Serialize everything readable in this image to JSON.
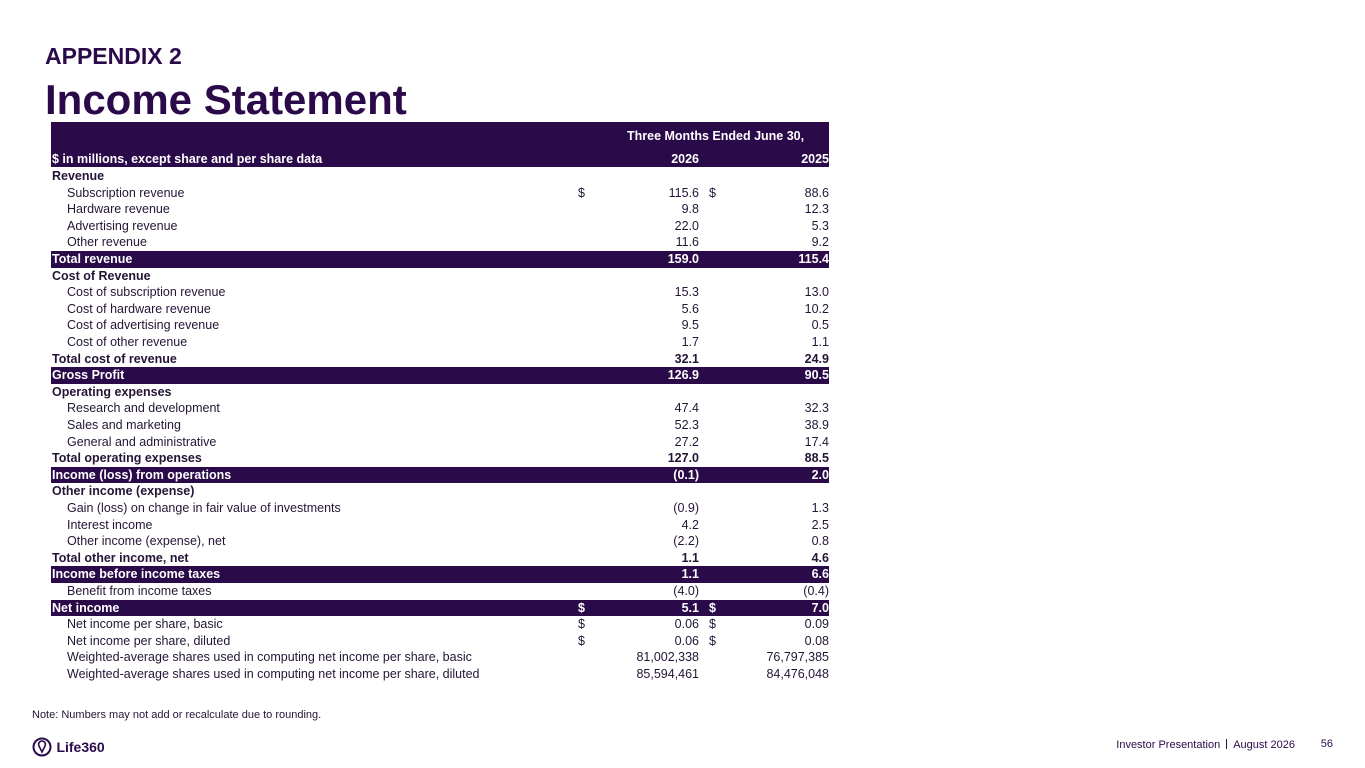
{
  "header": {
    "kicker": "APPENDIX 2",
    "title": "Income Statement"
  },
  "table": {
    "period": "Three Months Ended June 30,",
    "units": "$ in millions, except share and per share data",
    "columns": [
      "2026",
      "2025"
    ],
    "rows": [
      {
        "label": "Revenue",
        "style": "section"
      },
      {
        "label": "Subscription revenue",
        "style": "item",
        "sign1": "$",
        "v1": "115.6",
        "sign2": "$",
        "v2": "88.6"
      },
      {
        "label": "Hardware revenue",
        "style": "item",
        "v1": "9.8",
        "v2": "12.3"
      },
      {
        "label": "Advertising revenue",
        "style": "item",
        "v1": "22.0",
        "v2": "5.3"
      },
      {
        "label": "Other revenue",
        "style": "item",
        "v1": "11.6",
        "v2": "9.2"
      },
      {
        "label": "Total revenue",
        "style": "highlight",
        "v1": "159.0",
        "v2": "115.4"
      },
      {
        "label": "Cost of Revenue",
        "style": "section"
      },
      {
        "label": "Cost of subscription revenue",
        "style": "item",
        "v1": "15.3",
        "v2": "13.0"
      },
      {
        "label": "Cost of hardware revenue",
        "style": "item",
        "v1": "5.6",
        "v2": "10.2"
      },
      {
        "label": "Cost of advertising revenue",
        "style": "item",
        "v1": "9.5",
        "v2": "0.5"
      },
      {
        "label": "Cost of other revenue",
        "style": "item",
        "v1": "1.7",
        "v2": "1.1"
      },
      {
        "label": "Total cost of revenue",
        "style": "total",
        "v1": "32.1",
        "v2": "24.9"
      },
      {
        "label": "Gross Profit",
        "style": "highlight",
        "v1": "126.9",
        "v2": "90.5"
      },
      {
        "label": "Operating expenses",
        "style": "section"
      },
      {
        "label": "Research and development",
        "style": "item",
        "v1": "47.4",
        "v2": "32.3"
      },
      {
        "label": "Sales and marketing",
        "style": "item",
        "v1": "52.3",
        "v2": "38.9"
      },
      {
        "label": "General and administrative",
        "style": "item",
        "v1": "27.2",
        "v2": "17.4"
      },
      {
        "label": "Total operating expenses",
        "style": "total",
        "v1": "127.0",
        "v2": "88.5"
      },
      {
        "label": "Income (loss) from operations",
        "style": "highlight",
        "v1": "(0.1)",
        "v2": "2.0"
      },
      {
        "label": "Other income (expense)",
        "style": "section"
      },
      {
        "label": "Gain (loss) on change in fair value of investments",
        "style": "item",
        "v1": "(0.9)",
        "v2": "1.3"
      },
      {
        "label": "Interest income",
        "style": "item",
        "v1": "4.2",
        "v2": "2.5"
      },
      {
        "label": "Other income (expense), net",
        "style": "item",
        "v1": "(2.2)",
        "v2": "0.8"
      },
      {
        "label": "Total other income, net",
        "style": "total",
        "v1": "1.1",
        "v2": "4.6"
      },
      {
        "label": "Income before income taxes",
        "style": "highlight",
        "v1": "1.1",
        "v2": "6.6"
      },
      {
        "label": "Benefit from income taxes",
        "style": "item",
        "v1": "(4.0)",
        "v2": "(0.4)"
      },
      {
        "label": "Net income",
        "style": "highlight",
        "sign1": "$",
        "v1": "5.1",
        "sign2": "$",
        "v2": "7.0"
      },
      {
        "label": "Net income per share, basic",
        "style": "item",
        "sign1": "$",
        "v1": "0.06",
        "sign2": "$",
        "v2": "0.09"
      },
      {
        "label": "Net income per share, diluted",
        "style": "item",
        "sign1": "$",
        "v1": "0.06",
        "sign2": "$",
        "v2": "0.08"
      },
      {
        "label": "Weighted-average shares used in computing net income per share, basic",
        "style": "item",
        "v1": "81,002,338",
        "v2": "76,797,385"
      },
      {
        "label": "Weighted-average shares used in computing net income per share, diluted",
        "style": "item",
        "v1": "85,594,461",
        "v2": "84,476,048"
      }
    ]
  },
  "note": "Note: Numbers may not add or recalculate due to rounding.",
  "footer": {
    "logo": "Life360",
    "source": "Investor Presentation",
    "date": "August 2026",
    "page": "56"
  }
}
